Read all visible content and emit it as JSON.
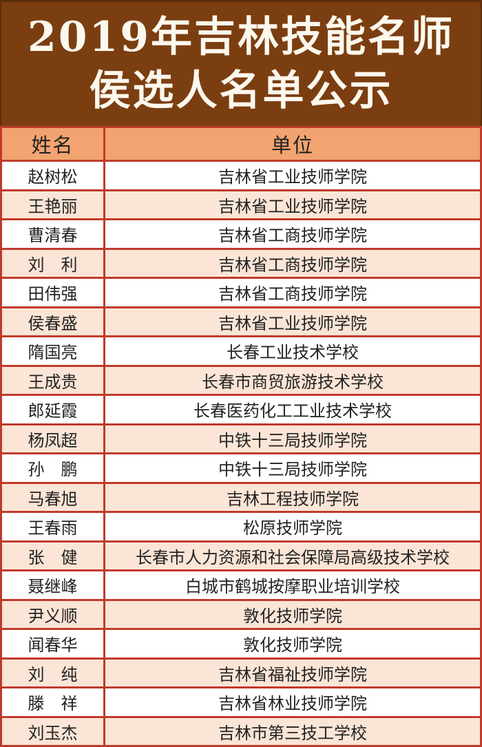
{
  "banner": {
    "title_line1": "2019年吉林技能名师",
    "title_line2": "侯选人名单公示"
  },
  "table": {
    "columns": [
      {
        "label": "姓名"
      },
      {
        "label": "单位"
      }
    ],
    "rows": [
      {
        "name": "赵树松",
        "unit": "吉林省工业技师学院"
      },
      {
        "name": "王艳丽",
        "unit": "吉林省工业技师学院"
      },
      {
        "name": "曹清春",
        "unit": "吉林省工商技师学院"
      },
      {
        "name": "刘　利",
        "unit": "吉林省工商技师学院"
      },
      {
        "name": "田伟强",
        "unit": "吉林省工商技师学院"
      },
      {
        "name": "侯春盛",
        "unit": "吉林省工业技师学院"
      },
      {
        "name": "隋国亮",
        "unit": "长春工业技术学校"
      },
      {
        "name": "王成贵",
        "unit": "长春市商贸旅游技术学校"
      },
      {
        "name": "郎延霞",
        "unit": "长春医药化工工业技术学校"
      },
      {
        "name": "杨凤超",
        "unit": "中铁十三局技师学院"
      },
      {
        "name": "孙　鹏",
        "unit": "中铁十三局技师学院"
      },
      {
        "name": "马春旭",
        "unit": "吉林工程技师学院"
      },
      {
        "name": "王春雨",
        "unit": "松原技师学院"
      },
      {
        "name": "张　健",
        "unit": "长春市人力资源和社会保障局高级技术学校"
      },
      {
        "name": "聂继峰",
        "unit": "白城市鹤城按摩职业培训学校"
      },
      {
        "name": "尹义顺",
        "unit": "敦化技师学院"
      },
      {
        "name": "闻春华",
        "unit": "敦化技师学院"
      },
      {
        "name": "刘　纯",
        "unit": "吉林省福祉技师学院"
      },
      {
        "name": "滕　祥",
        "unit": "吉林省林业技师学院"
      },
      {
        "name": "刘玉杰",
        "unit": "吉林市第三技工学校"
      }
    ]
  },
  "colors": {
    "banner_bg": "#7B3E11",
    "banner_text": "#FCF8EE",
    "banner_edge": "#5C2D0A",
    "border_red": "#C03A2B",
    "column_header_bg": "#F2A470",
    "row_alt_bg": "#FBE5D6",
    "row_bg": "#FFFFFF",
    "cell_text": "#222222"
  }
}
